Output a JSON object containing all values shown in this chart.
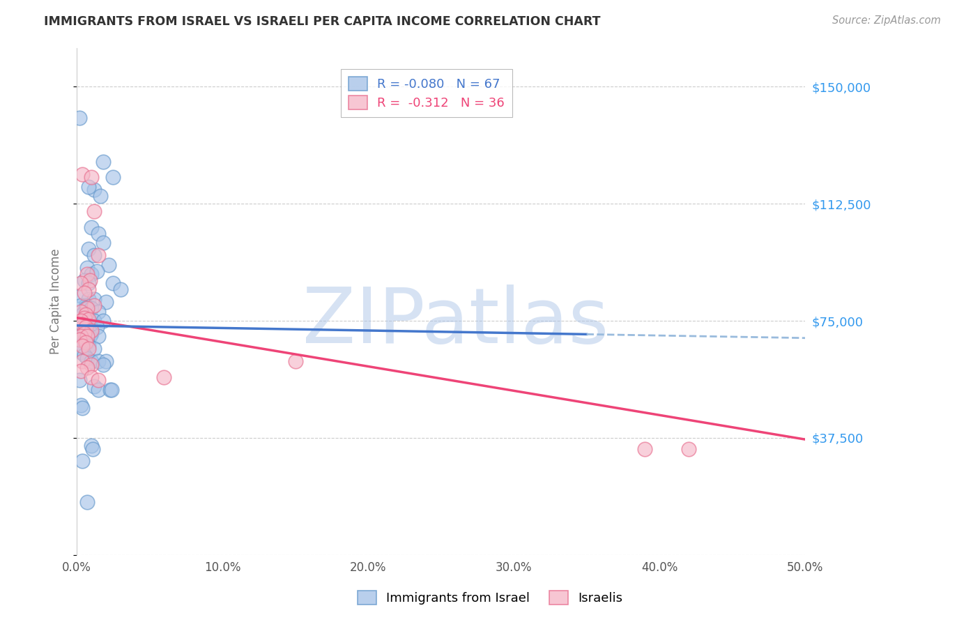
{
  "title": "IMMIGRANTS FROM ISRAEL VS ISRAELI PER CAPITA INCOME CORRELATION CHART",
  "source": "Source: ZipAtlas.com",
  "ylabel": "Per Capita Income",
  "yticks": [
    0,
    37500,
    75000,
    112500,
    150000
  ],
  "ytick_labels": [
    "",
    "$37,500",
    "$75,000",
    "$112,500",
    "$150,000"
  ],
  "xlim": [
    0.0,
    0.5
  ],
  "ylim": [
    0,
    162500
  ],
  "legend_blue_R": "-0.080",
  "legend_blue_N": "67",
  "legend_pink_R": "-0.312",
  "legend_pink_N": "36",
  "watermark": "ZIPatlas",
  "watermark_color": "#aec6e8",
  "blue_fill": "#a8c4e8",
  "blue_edge": "#6699cc",
  "pink_fill": "#f5b8c8",
  "pink_edge": "#e87090",
  "trendline_blue_solid": "#4477cc",
  "trendline_blue_dash": "#99bbdd",
  "trendline_pink": "#ee4477",
  "background_color": "#ffffff",
  "grid_color": "#cccccc",
  "title_color": "#333333",
  "axis_label_color": "#777777",
  "right_tick_color": "#3399ee",
  "blue_scatter": [
    [
      0.002,
      140000
    ],
    [
      0.018,
      126000
    ],
    [
      0.025,
      121000
    ],
    [
      0.012,
      117000
    ],
    [
      0.016,
      115000
    ],
    [
      0.008,
      118000
    ],
    [
      0.01,
      105000
    ],
    [
      0.015,
      103000
    ],
    [
      0.018,
      100000
    ],
    [
      0.008,
      98000
    ],
    [
      0.012,
      96000
    ],
    [
      0.022,
      93000
    ],
    [
      0.007,
      92000
    ],
    [
      0.01,
      90000
    ],
    [
      0.014,
      91000
    ],
    [
      0.005,
      88000
    ],
    [
      0.008,
      87000
    ],
    [
      0.025,
      87000
    ],
    [
      0.03,
      85000
    ],
    [
      0.003,
      83000
    ],
    [
      0.008,
      82000
    ],
    [
      0.012,
      82000
    ],
    [
      0.02,
      81000
    ],
    [
      0.006,
      80000
    ],
    [
      0.003,
      80000
    ],
    [
      0.006,
      79000
    ],
    [
      0.01,
      79000
    ],
    [
      0.015,
      78000
    ],
    [
      0.004,
      77000
    ],
    [
      0.007,
      76000
    ],
    [
      0.012,
      75000
    ],
    [
      0.018,
      75000
    ],
    [
      0.003,
      74000
    ],
    [
      0.005,
      73500
    ],
    [
      0.008,
      73000
    ],
    [
      0.014,
      73000
    ],
    [
      0.002,
      72500
    ],
    [
      0.005,
      72000
    ],
    [
      0.01,
      71000
    ],
    [
      0.003,
      70500
    ],
    [
      0.006,
      70000
    ],
    [
      0.009,
      70000
    ],
    [
      0.015,
      70000
    ],
    [
      0.002,
      69000
    ],
    [
      0.005,
      68500
    ],
    [
      0.007,
      68000
    ],
    [
      0.004,
      67500
    ],
    [
      0.008,
      67000
    ],
    [
      0.012,
      66000
    ],
    [
      0.003,
      65000
    ],
    [
      0.005,
      64000
    ],
    [
      0.007,
      63000
    ],
    [
      0.01,
      62000
    ],
    [
      0.015,
      62000
    ],
    [
      0.02,
      62000
    ],
    [
      0.018,
      61000
    ],
    [
      0.002,
      56000
    ],
    [
      0.012,
      54000
    ],
    [
      0.015,
      53000
    ],
    [
      0.023,
      53000
    ],
    [
      0.024,
      53000
    ],
    [
      0.003,
      48000
    ],
    [
      0.004,
      47000
    ],
    [
      0.01,
      35000
    ],
    [
      0.011,
      34000
    ],
    [
      0.004,
      30000
    ],
    [
      0.007,
      17000
    ]
  ],
  "pink_scatter": [
    [
      0.004,
      122000
    ],
    [
      0.01,
      121000
    ],
    [
      0.012,
      110000
    ],
    [
      0.015,
      96000
    ],
    [
      0.007,
      90000
    ],
    [
      0.009,
      88000
    ],
    [
      0.003,
      87000
    ],
    [
      0.008,
      85000
    ],
    [
      0.005,
      84000
    ],
    [
      0.012,
      80000
    ],
    [
      0.007,
      79000
    ],
    [
      0.003,
      78000
    ],
    [
      0.006,
      77000
    ],
    [
      0.005,
      76000
    ],
    [
      0.008,
      75500
    ],
    [
      0.003,
      75000
    ],
    [
      0.004,
      74000
    ],
    [
      0.006,
      73000
    ],
    [
      0.01,
      72000
    ],
    [
      0.005,
      71000
    ],
    [
      0.003,
      70000
    ],
    [
      0.007,
      70000
    ],
    [
      0.002,
      69000
    ],
    [
      0.006,
      68000
    ],
    [
      0.004,
      67000
    ],
    [
      0.008,
      66000
    ],
    [
      0.004,
      62000
    ],
    [
      0.01,
      61000
    ],
    [
      0.007,
      60000
    ],
    [
      0.003,
      59000
    ],
    [
      0.01,
      57000
    ],
    [
      0.015,
      56000
    ],
    [
      0.15,
      62000
    ],
    [
      0.06,
      57000
    ],
    [
      0.39,
      34000
    ],
    [
      0.42,
      34000
    ]
  ],
  "blue_trend_x": [
    0.0,
    0.5
  ],
  "blue_trend_y": [
    73500,
    69500
  ],
  "pink_trend_x": [
    0.0,
    0.5
  ],
  "pink_trend_y": [
    76000,
    37000
  ]
}
